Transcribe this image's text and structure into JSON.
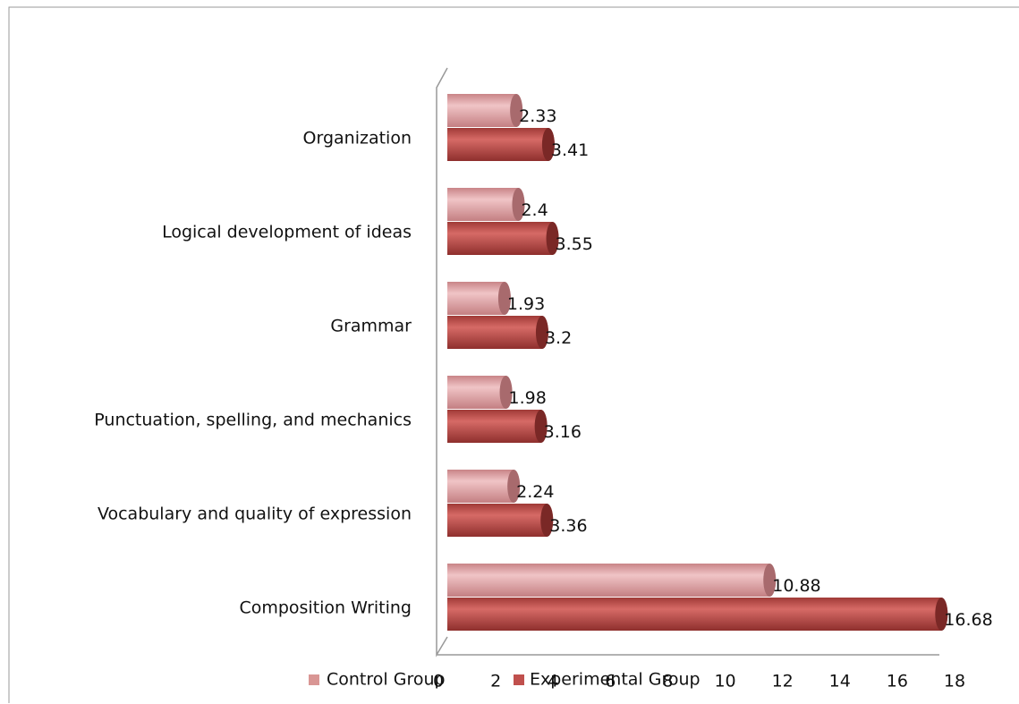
{
  "chart_data": {
    "type": "bar",
    "orientation": "horizontal",
    "categories": [
      "Organization",
      "Logical development of ideas",
      "Grammar",
      "Punctuation, spelling, and mechanics",
      "Vocabulary and quality of expression",
      "Composition Writing"
    ],
    "series": [
      {
        "name": "Control Group",
        "color": "#d99694",
        "values": [
          2.33,
          2.4,
          1.93,
          1.98,
          2.24,
          10.88
        ]
      },
      {
        "name": "Experimental Group",
        "color": "#c0504d",
        "values": [
          3.41,
          3.55,
          3.2,
          3.16,
          3.36,
          16.68
        ]
      }
    ],
    "xlim": [
      0,
      18
    ],
    "xticks": [
      0,
      2,
      4,
      6,
      8,
      10,
      12,
      14,
      16,
      18
    ],
    "legend": "bottom"
  }
}
